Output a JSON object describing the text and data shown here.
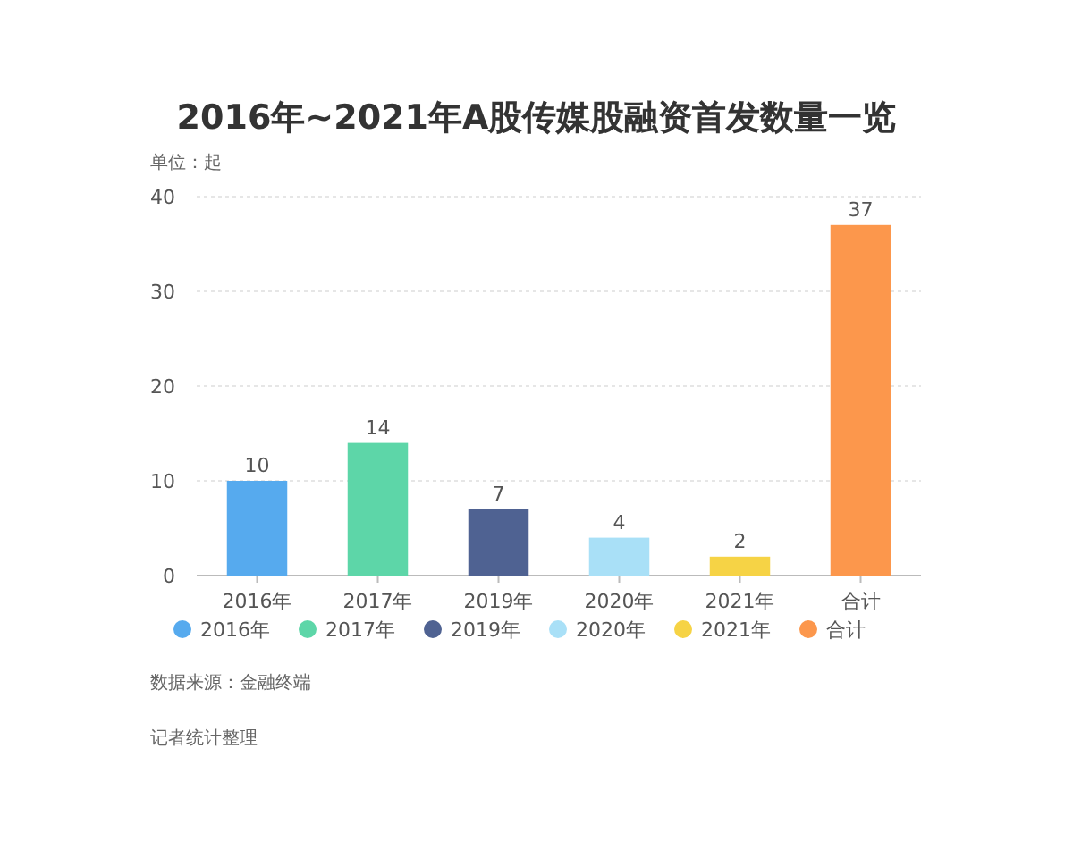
{
  "chart_data": {
    "type": "bar",
    "title": "2016年~2021年A股传媒股融资首发数量一览",
    "ylabel": "单位：起",
    "categories": [
      "2016年",
      "2017年",
      "2019年",
      "2020年",
      "2021年",
      "合计"
    ],
    "series": [
      {
        "name": "2016年",
        "color": "#56aaee",
        "values": [
          10,
          null,
          null,
          null,
          null,
          null
        ]
      },
      {
        "name": "2017年",
        "color": "#5dd6a8",
        "values": [
          null,
          14,
          null,
          null,
          null,
          null
        ]
      },
      {
        "name": "2019年",
        "color": "#4f6292",
        "values": [
          null,
          null,
          7,
          null,
          null,
          null
        ]
      },
      {
        "name": "2020年",
        "color": "#a9e0f7",
        "values": [
          null,
          null,
          null,
          4,
          null,
          null
        ]
      },
      {
        "name": "2021年",
        "color": "#f6d345",
        "values": [
          null,
          null,
          null,
          null,
          2,
          null
        ]
      },
      {
        "name": "合计",
        "color": "#fc974c",
        "values": [
          null,
          null,
          null,
          null,
          null,
          37
        ]
      }
    ],
    "ylim": [
      0,
      40
    ],
    "yticks": [
      0,
      10,
      20,
      30,
      40
    ],
    "grid": "y",
    "data_labels": true,
    "legend": "bottom",
    "annotations": [
      "数据来源：金融终端",
      "记者统计整理"
    ]
  }
}
